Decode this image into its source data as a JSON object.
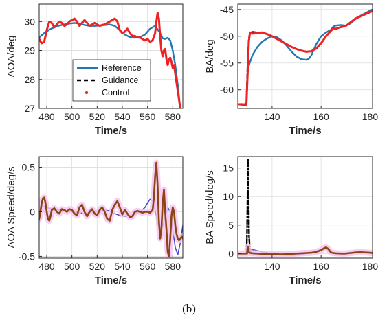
{
  "caption": "(b)",
  "colors": {
    "reference": "#1f77b4",
    "guidance": "#000000",
    "control": "#ee2222",
    "speed_reference": "#4a48c8",
    "speed_control": "#8b4513",
    "speed_control_halo": "#f7c4f0"
  },
  "chart_data": [
    {
      "id": "aoa",
      "type": "line",
      "xlabel": "Time/s",
      "ylabel": "AOA/deg",
      "xlim": [
        474,
        588
      ],
      "ylim": [
        27,
        30.6
      ],
      "xticks": [
        480,
        500,
        520,
        540,
        560,
        580
      ],
      "yticks": [
        27,
        28,
        29,
        30
      ],
      "grid": true,
      "legend": {
        "position": "lower-center",
        "entries": [
          {
            "label": "Reference",
            "style": "solid-blue"
          },
          {
            "label": "Guidance",
            "style": "dashed-black"
          },
          {
            "label": "Control",
            "style": "red-dots"
          }
        ]
      },
      "series": [
        {
          "name": "Reference",
          "x": [
            474,
            478,
            482,
            486,
            490,
            494,
            498,
            502,
            506,
            510,
            514,
            518,
            522,
            526,
            530,
            534,
            538,
            542,
            546,
            550,
            554,
            558,
            562,
            566,
            570,
            572,
            574,
            576,
            578,
            580,
            582,
            584,
            586
          ],
          "y": [
            29.45,
            29.6,
            29.72,
            29.8,
            29.86,
            29.9,
            29.93,
            29.95,
            29.93,
            29.88,
            29.85,
            29.85,
            29.86,
            29.88,
            29.9,
            29.85,
            29.7,
            29.55,
            29.46,
            29.44,
            29.46,
            29.55,
            29.75,
            29.85,
            29.6,
            29.42,
            29.4,
            29.44,
            29.35,
            29.0,
            28.5,
            27.8,
            27.0
          ]
        },
        {
          "name": "Control",
          "x": [
            474,
            476,
            478,
            480,
            482,
            484,
            486,
            488,
            490,
            492,
            494,
            496,
            498,
            500,
            502,
            504,
            506,
            508,
            510,
            512,
            514,
            516,
            518,
            520,
            522,
            524,
            526,
            528,
            530,
            532,
            534,
            536,
            538,
            540,
            542,
            544,
            546,
            548,
            550,
            552,
            554,
            556,
            558,
            560,
            562,
            564,
            566,
            567,
            568,
            569,
            570,
            571,
            572,
            573,
            574,
            575,
            576,
            577,
            578,
            579,
            580,
            581,
            582,
            583,
            584,
            585,
            586
          ],
          "y": [
            29.4,
            29.25,
            29.3,
            29.7,
            30.0,
            29.95,
            29.8,
            29.9,
            30.0,
            29.95,
            29.85,
            29.9,
            30.0,
            30.05,
            30.1,
            30.0,
            29.85,
            29.95,
            30.05,
            29.95,
            29.85,
            29.9,
            29.95,
            29.9,
            29.85,
            29.88,
            29.9,
            29.95,
            30.0,
            30.05,
            30.1,
            30.0,
            29.7,
            29.6,
            29.65,
            29.75,
            29.6,
            29.5,
            29.5,
            29.45,
            29.45,
            29.4,
            29.35,
            29.4,
            29.3,
            29.35,
            29.6,
            30.0,
            30.3,
            30.1,
            29.5,
            29.0,
            28.8,
            29.0,
            29.05,
            28.7,
            28.5,
            28.7,
            28.75,
            28.6,
            28.4,
            28.5,
            28.2,
            27.9,
            27.6,
            27.3,
            27.0
          ]
        }
      ]
    },
    {
      "id": "ba",
      "type": "line",
      "xlabel": "Time/s",
      "ylabel": "BA/deg",
      "xlim": [
        126,
        181
      ],
      "ylim": [
        -63.5,
        -44
      ],
      "xticks": [
        140,
        160,
        180
      ],
      "yticks": [
        -60,
        -55,
        -50,
        -45
      ],
      "grid": true,
      "series": [
        {
          "name": "Reference",
          "x": [
            126,
            128,
            129.5,
            130,
            130.5,
            131,
            132,
            134,
            136,
            138,
            140,
            142,
            144,
            146,
            148,
            150,
            152,
            154,
            155,
            156,
            158,
            160,
            162,
            164,
            165,
            166,
            168,
            170,
            172,
            174,
            176,
            178,
            180,
            181
          ],
          "y": [
            -62.7,
            -62.7,
            -62.7,
            -57.0,
            -55.5,
            -54.8,
            -53.5,
            -52.0,
            -51.0,
            -50.4,
            -50.0,
            -50.2,
            -50.8,
            -51.8,
            -52.9,
            -53.8,
            -54.3,
            -54.4,
            -54.2,
            -53.6,
            -51.5,
            -50.0,
            -49.3,
            -48.8,
            -48.2,
            -48.0,
            -47.9,
            -48.0,
            -47.6,
            -46.8,
            -46.2,
            -45.7,
            -45.2,
            -45.0
          ]
        },
        {
          "name": "Guidance",
          "x": [
            126,
            129.5,
            130,
            130.5,
            131,
            132,
            134
          ],
          "y": [
            -62.7,
            -62.7,
            -55.0,
            -50.5,
            -49.3,
            -49.2,
            -49.3
          ]
        },
        {
          "name": "Control",
          "x": [
            126,
            128,
            129.5,
            130,
            130.5,
            131,
            132,
            134,
            136,
            138,
            140,
            142,
            144,
            146,
            148,
            150,
            152,
            154,
            156,
            158,
            160,
            162,
            163,
            164,
            165,
            166,
            168,
            170,
            172,
            174,
            176,
            178,
            180,
            181
          ],
          "y": [
            -62.7,
            -62.8,
            -62.8,
            -57.0,
            -51.0,
            -49.3,
            -49.5,
            -49.4,
            -49.3,
            -49.6,
            -50.0,
            -50.5,
            -51.0,
            -51.5,
            -52.0,
            -52.4,
            -52.7,
            -52.9,
            -52.8,
            -52.3,
            -51.3,
            -50.0,
            -49.5,
            -49.0,
            -48.5,
            -48.6,
            -48.3,
            -48.1,
            -47.4,
            -46.7,
            -46.3,
            -45.9,
            -45.5,
            -45.3
          ]
        }
      ]
    },
    {
      "id": "aoa_speed",
      "type": "line",
      "xlabel": "Time/s",
      "ylabel": "AOA Speed/deg/s",
      "xlim": [
        474,
        588
      ],
      "ylim": [
        -0.52,
        0.62
      ],
      "xticks": [
        480,
        500,
        520,
        540,
        560,
        580
      ],
      "yticks": [
        -0.5,
        0,
        0.5
      ],
      "yticklabels": [
        "-0.5",
        "0",
        "0.5"
      ],
      "grid": true,
      "series": [
        {
          "name": "Reference",
          "x": [
            474,
            478,
            482,
            486,
            490,
            494,
            498,
            502,
            506,
            510,
            514,
            518,
            522,
            526,
            530,
            534,
            538,
            542,
            546,
            550,
            554,
            558,
            560,
            562,
            564,
            566,
            568,
            570,
            572,
            574,
            576,
            578,
            580,
            582,
            584,
            586,
            588
          ],
          "y": [
            0.05,
            0.06,
            0.04,
            0.03,
            0.02,
            0.01,
            0.0,
            0.0,
            -0.01,
            -0.02,
            -0.01,
            0.0,
            0.01,
            0.02,
            0.01,
            -0.02,
            -0.04,
            -0.05,
            -0.04,
            -0.02,
            0.0,
            0.05,
            0.1,
            0.14,
            0.12,
            0.02,
            -0.12,
            -0.2,
            -0.16,
            -0.05,
            0.05,
            0.0,
            -0.2,
            -0.4,
            -0.48,
            -0.35,
            -0.15
          ]
        },
        {
          "name": "Control",
          "x": [
            474,
            475,
            476,
            477,
            478,
            479,
            480,
            481,
            482,
            483,
            484,
            486,
            488,
            490,
            492,
            494,
            496,
            498,
            500,
            502,
            504,
            506,
            508,
            510,
            512,
            514,
            516,
            518,
            520,
            522,
            524,
            526,
            528,
            530,
            532,
            534,
            536,
            538,
            540,
            542,
            544,
            546,
            548,
            550,
            552,
            554,
            556,
            558,
            560,
            562,
            564,
            565,
            566,
            567,
            568,
            569,
            570,
            571,
            572,
            573,
            574,
            575,
            576,
            577,
            578,
            579,
            580,
            581,
            582,
            583,
            584,
            585,
            586,
            587,
            588
          ],
          "y": [
            -0.08,
            0.0,
            0.1,
            0.15,
            0.16,
            0.1,
            0.0,
            -0.08,
            -0.1,
            -0.05,
            0.02,
            0.04,
            0.0,
            -0.02,
            0.03,
            0.02,
            0.0,
            0.03,
            0.02,
            -0.02,
            -0.04,
            0.05,
            0.08,
            0.0,
            -0.05,
            0.0,
            0.03,
            -0.02,
            -0.04,
            0.02,
            0.05,
            0.0,
            -0.08,
            -0.1,
            0.02,
            0.08,
            0.12,
            0.05,
            -0.03,
            0.02,
            -0.02,
            -0.06,
            -0.05,
            0.0,
            0.01,
            0.0,
            -0.01,
            0.0,
            0.0,
            -0.01,
            0.02,
            0.15,
            0.4,
            0.55,
            0.3,
            -0.1,
            -0.3,
            -0.2,
            0.1,
            0.25,
            0.0,
            -0.2,
            -0.45,
            -0.5,
            -0.3,
            -0.05,
            0.05,
            0.0,
            -0.15,
            -0.25,
            -0.3,
            -0.32,
            -0.3,
            -0.28,
            -0.3
          ]
        }
      ]
    },
    {
      "id": "ba_speed",
      "type": "line",
      "xlabel": "Time/s",
      "ylabel": "BA Speed/deg/s",
      "xlim": [
        126,
        181
      ],
      "ylim": [
        -0.8,
        17
      ],
      "xticks": [
        140,
        160,
        180
      ],
      "yticks": [
        0,
        5,
        10,
        15
      ],
      "grid": true,
      "series": [
        {
          "name": "Reference",
          "x": [
            126,
            128,
            129.8,
            130.3,
            131,
            132,
            134,
            136,
            138,
            140,
            142,
            144,
            146,
            148,
            150,
            152,
            154,
            156,
            158,
            160,
            162,
            163,
            164,
            165,
            166,
            168,
            170,
            172,
            174,
            176,
            178,
            180,
            181
          ],
          "y": [
            0.0,
            0.0,
            0.0,
            0.9,
            0.8,
            0.7,
            0.5,
            0.3,
            0.15,
            0.0,
            -0.15,
            -0.25,
            -0.3,
            -0.3,
            -0.25,
            -0.15,
            0.0,
            0.2,
            0.45,
            0.7,
            0.85,
            0.6,
            0.3,
            0.15,
            0.1,
            0.05,
            0.05,
            0.1,
            0.3,
            0.35,
            0.3,
            0.25,
            0.2
          ]
        },
        {
          "name": "Guidance",
          "x": [
            126,
            129.6,
            129.8,
            130.0,
            130.2,
            130.4,
            130.6,
            131,
            132
          ],
          "y": [
            0.0,
            0.0,
            4.0,
            12.0,
            16.5,
            10.0,
            3.0,
            0.5,
            0.0
          ]
        },
        {
          "name": "Control",
          "x": [
            126,
            128,
            129.8,
            130.1,
            130.4,
            131,
            132,
            134,
            136,
            138,
            140,
            142,
            144,
            146,
            148,
            150,
            152,
            154,
            156,
            158,
            160,
            161,
            162,
            163,
            164,
            165,
            166,
            168,
            170,
            172,
            174,
            176,
            178,
            180,
            181
          ],
          "y": [
            0.0,
            0.0,
            0.0,
            1.2,
            0.3,
            0.1,
            0.05,
            0.0,
            -0.05,
            -0.1,
            -0.1,
            -0.12,
            -0.15,
            -0.1,
            -0.05,
            0.0,
            0.05,
            0.1,
            0.15,
            0.3,
            0.6,
            0.9,
            1.1,
            0.8,
            0.2,
            0.1,
            0.05,
            0.0,
            0.0,
            0.1,
            0.2,
            0.25,
            0.2,
            0.15,
            0.1
          ]
        }
      ]
    }
  ]
}
